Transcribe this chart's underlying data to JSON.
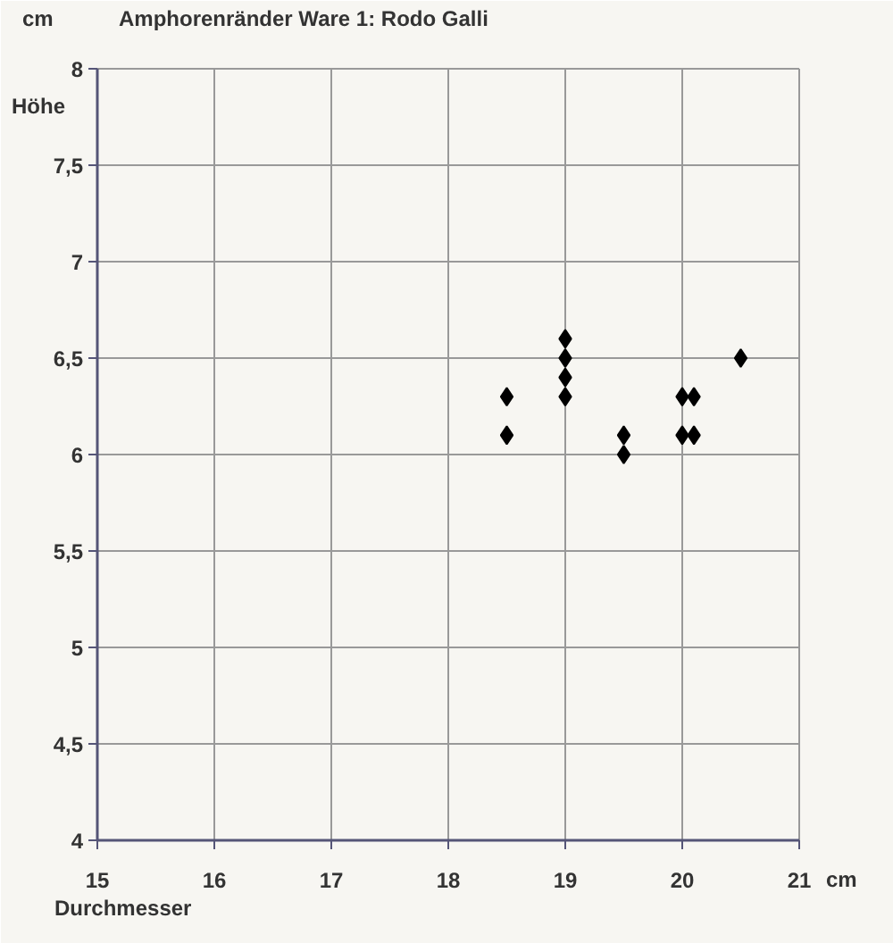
{
  "chart_data": {
    "type": "scatter",
    "title": "Amphorenränder Ware 1: Rodo Galli",
    "xlabel": "Durchmesser",
    "ylabel": "Höhe",
    "annotations": [
      "cm",
      "cm"
    ],
    "x": [
      18.5,
      18.5,
      19,
      19,
      19,
      19,
      19.5,
      19.5,
      20,
      20,
      20.1,
      20.1,
      20.5
    ],
    "series": [
      {
        "color": "#000000",
        "values": [
          6.3,
          6.1,
          6.6,
          6.5,
          6.4,
          6.3,
          6.1,
          6.0,
          6.3,
          6.1,
          6.3,
          6.1,
          6.5
        ]
      }
    ],
    "marker": "diamond",
    "grid": true,
    "xlim": [
      15,
      21
    ],
    "xticks": [
      15,
      16,
      17,
      18,
      19,
      20,
      21
    ],
    "ylim": [
      4,
      8
    ],
    "yticks": [
      4,
      {
        "value": 4.5,
        "label": "4,5"
      },
      5,
      {
        "value": 5.5,
        "label": "5,5"
      },
      6,
      {
        "value": 6.5,
        "label": "6,5"
      },
      7,
      {
        "value": 7.5,
        "label": "7,5"
      },
      8
    ]
  }
}
